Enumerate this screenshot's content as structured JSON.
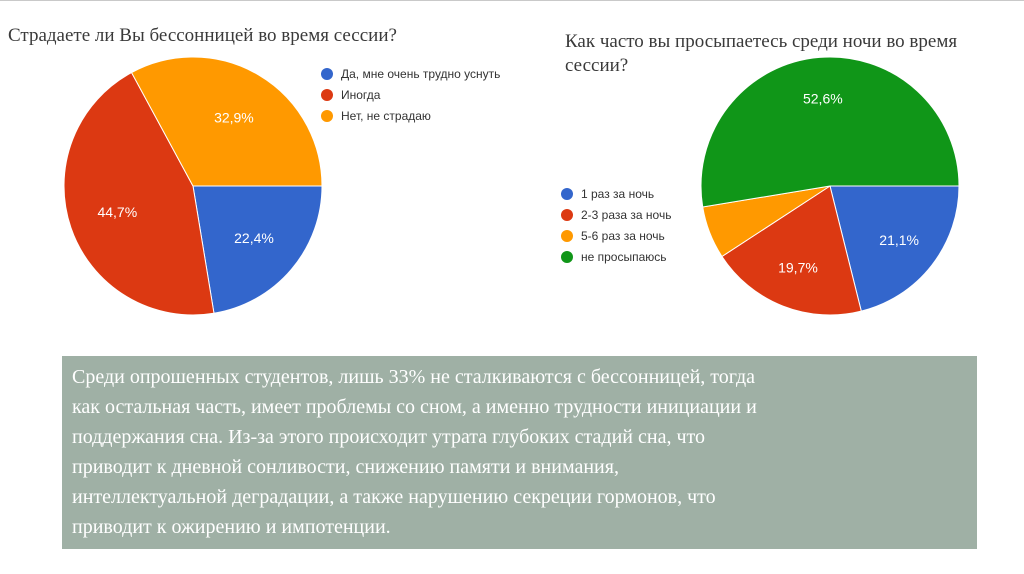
{
  "chart_data": [
    {
      "type": "pie",
      "title": "Страдаете ли Вы бессонницей во время сессии?",
      "categories": [
        "Да, мне очень трудно уснуть",
        "Иногда",
        "Нет, не страдаю"
      ],
      "values": [
        22.4,
        44.7,
        32.9
      ],
      "data_labels": [
        "22,4%",
        "44,7%",
        "32,9%"
      ],
      "colors": [
        "#3366cc",
        "#dc3912",
        "#ff9900"
      ],
      "legend_position": "right"
    },
    {
      "type": "pie",
      "title": "Как часто вы просыпаетесь среди ночи во время сессии?",
      "categories": [
        "1 раз за ночь",
        "2-3 раза за ночь",
        "5-6 раз за ночь",
        "не просыпаюсь"
      ],
      "values": [
        21.1,
        19.7,
        6.6,
        52.6
      ],
      "data_labels": [
        "21,1%",
        "19,7%",
        "",
        "52,6%"
      ],
      "colors": [
        "#3366cc",
        "#dc3912",
        "#ff9900",
        "#109618"
      ],
      "legend_position": "left"
    }
  ],
  "note": {
    "lines": [
      "Среди опрошенных студентов, лишь 33% не сталкиваются с бессонницей, тогда",
      "как остальная часть, имеет проблемы со сном, а именно трудности инициации и",
      "поддержания сна. Из-за этого происходит утрата глубоких стадий сна, что",
      "приводит к дневной сонливости, снижению памяти и внимания,",
      "интеллектуальной деградации, а также нарушению секреции гормонов, что",
      "приводит к ожирению и импотенции."
    ]
  }
}
